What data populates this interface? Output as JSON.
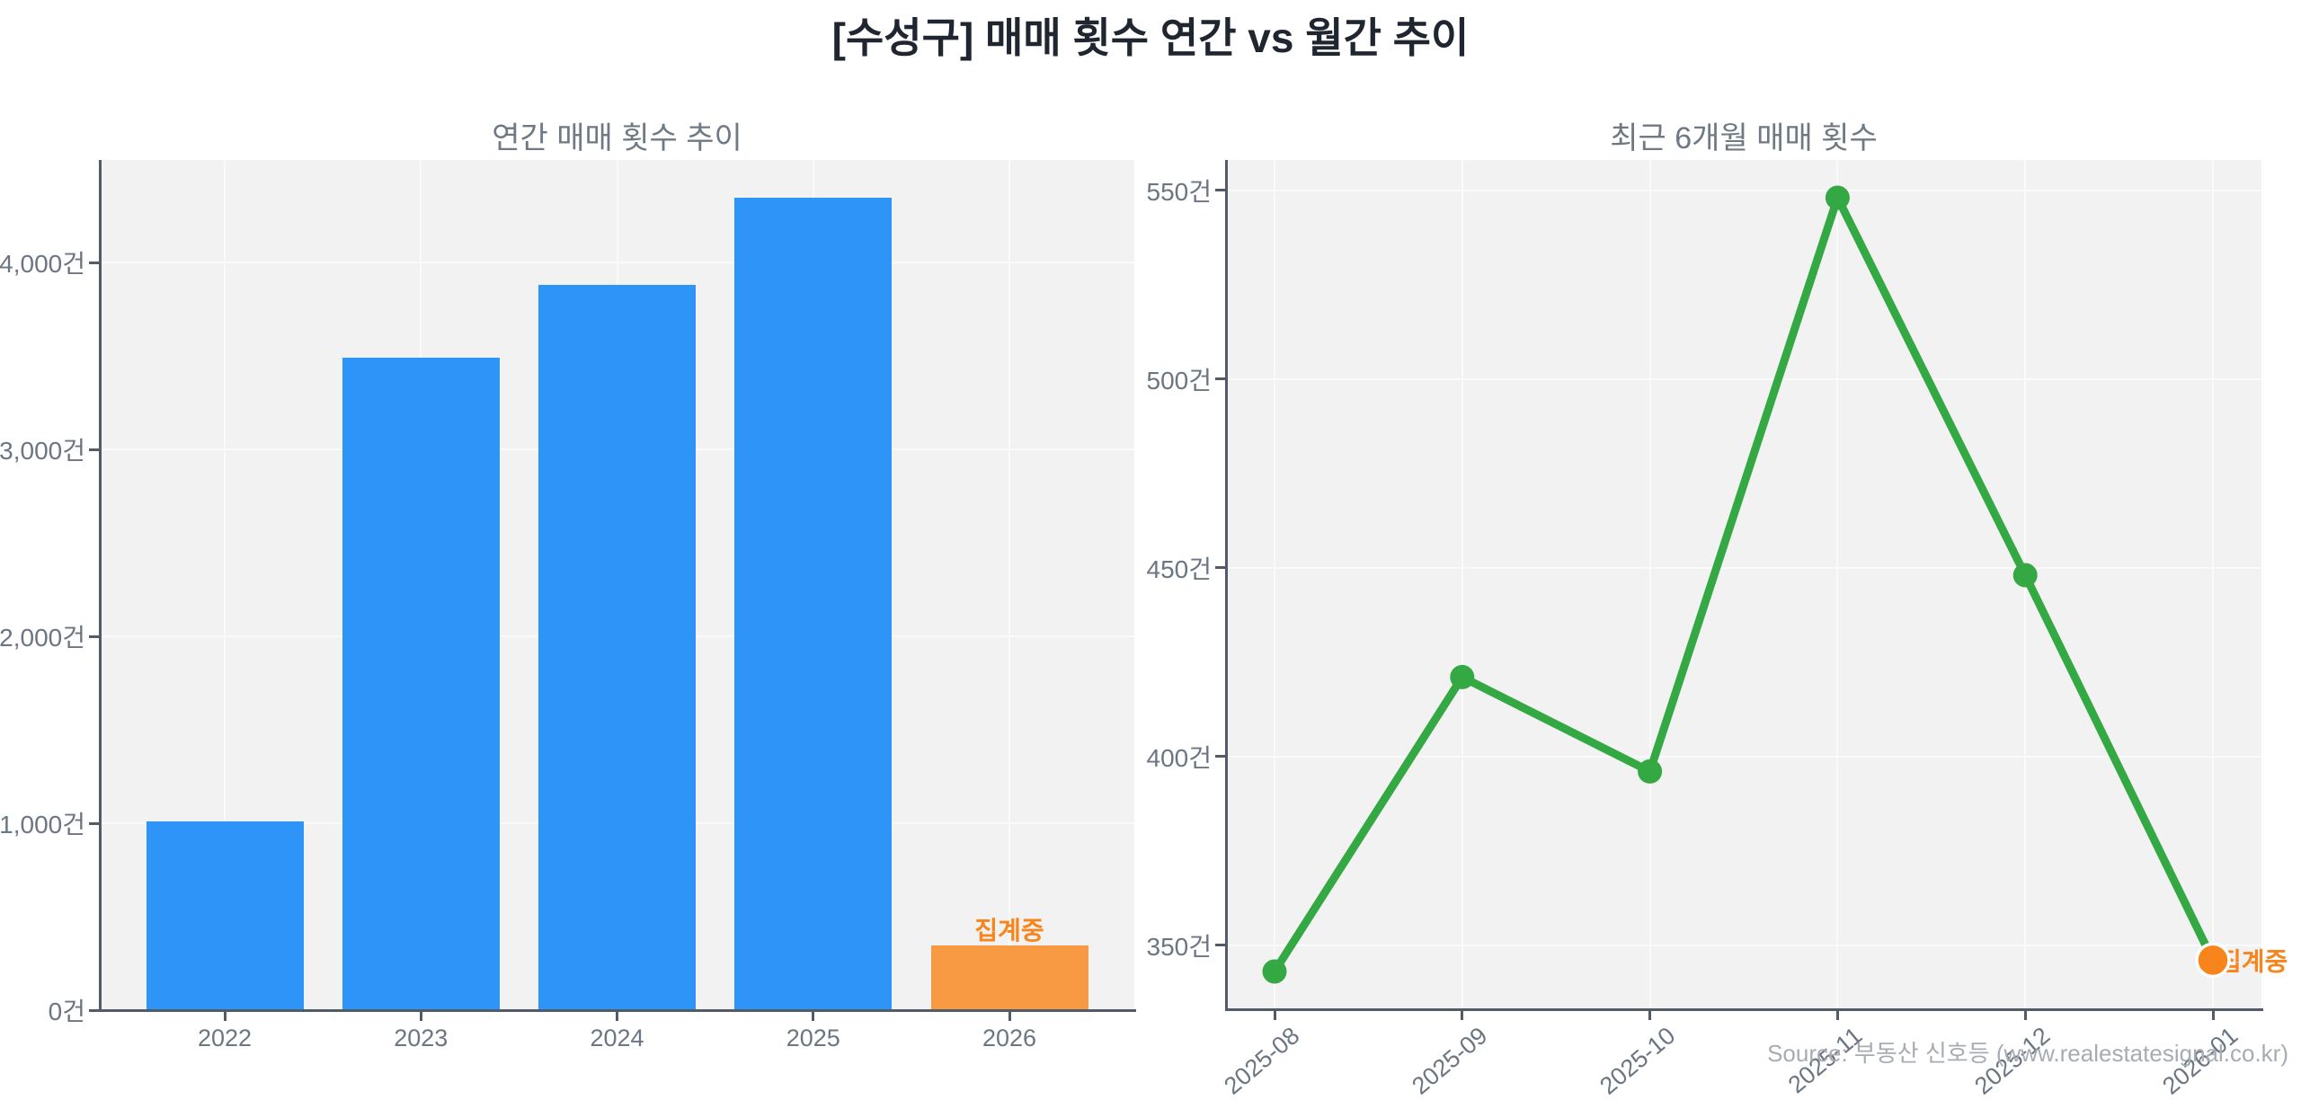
{
  "page_title": "[수성구] 매매 횟수 연간 vs 월간 추이",
  "source_note": "Source: 부동산 신호등 (www.realestatesignal.co.kr)",
  "colors": {
    "blue": "#2f94f8",
    "orange_bar": "#f89a43",
    "orange_accent": "#f8841c",
    "green": "#33a843",
    "plot_bg": "#f2f2f3",
    "grid": "#fafafa",
    "axis": "#525c68",
    "tick_text": "#6b7682",
    "title_text": "#6e7983",
    "main_title_text": "#1f2630",
    "source_text": "#a7acb3"
  },
  "chart_data": [
    {
      "type": "bar",
      "title": "연간 매매 횟수 추이",
      "unit": "건",
      "categories": [
        "2022",
        "2023",
        "2024",
        "2025",
        "2026"
      ],
      "values": [
        1010,
        3490,
        3880,
        4350,
        345
      ],
      "bar_colors": [
        "#2f94f8",
        "#2f94f8",
        "#2f94f8",
        "#2f94f8",
        "#f89a43"
      ],
      "annotation": {
        "text": "집계중",
        "category": "2026"
      },
      "ylim": [
        0,
        4550
      ],
      "yticks": [
        0,
        1000,
        2000,
        3000,
        4000
      ],
      "ytick_labels": [
        "0건",
        "1,000건",
        "2,000건",
        "3,000건",
        "4,000건"
      ],
      "grid": true,
      "legend": "none"
    },
    {
      "type": "line",
      "title": "최근 6개월 매매 횟수",
      "unit": "건",
      "categories": [
        "2025-08",
        "2025-09",
        "2025-10",
        "2025-11",
        "2025-12",
        "2026-01"
      ],
      "values": [
        343,
        421,
        396,
        548,
        448,
        346
      ],
      "line_color": "#33a843",
      "last_point_color": "#f8841c",
      "annotation": {
        "text": "집계중",
        "category": "2026-01"
      },
      "ylim": [
        333,
        558
      ],
      "yticks": [
        350,
        400,
        450,
        500,
        550
      ],
      "ytick_labels": [
        "350건",
        "400건",
        "450건",
        "500건",
        "550건"
      ],
      "grid": true,
      "legend": "none"
    }
  ]
}
